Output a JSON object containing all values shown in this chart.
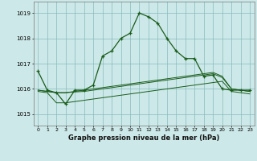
{
  "title": "Graphe pression niveau de la mer (hPa)",
  "background_color": "#cce8e8",
  "grid_color": "#88bbbb",
  "line_color": "#1a5c1a",
  "xlim": [
    -0.5,
    23.5
  ],
  "ylim": [
    1014.55,
    1019.45
  ],
  "yticks": [
    1015,
    1016,
    1017,
    1018,
    1019
  ],
  "xticks": [
    0,
    1,
    2,
    3,
    4,
    5,
    6,
    7,
    8,
    9,
    10,
    11,
    12,
    13,
    14,
    15,
    16,
    17,
    18,
    19,
    20,
    21,
    22,
    23
  ],
  "main_line": [
    1016.7,
    1015.95,
    1015.85,
    1015.4,
    1015.95,
    1015.95,
    1016.15,
    1017.3,
    1017.5,
    1018.0,
    1018.2,
    1019.0,
    1018.85,
    1018.6,
    1018.0,
    1017.5,
    1017.2,
    1017.2,
    1016.5,
    1016.55,
    1016.0,
    1015.95,
    1015.95,
    1015.95
  ],
  "line2": [
    1015.95,
    1015.9,
    1015.85,
    1015.85,
    1015.9,
    1015.95,
    1016.0,
    1016.05,
    1016.1,
    1016.15,
    1016.2,
    1016.25,
    1016.3,
    1016.35,
    1016.4,
    1016.45,
    1016.5,
    1016.55,
    1016.6,
    1016.65,
    1016.5,
    1016.0,
    1015.95,
    1015.9
  ],
  "line3": [
    1015.95,
    1015.9,
    1015.85,
    1015.85,
    1015.88,
    1015.9,
    1015.95,
    1016.0,
    1016.05,
    1016.1,
    1016.15,
    1016.2,
    1016.25,
    1016.3,
    1016.35,
    1016.4,
    1016.45,
    1016.5,
    1016.55,
    1016.6,
    1016.45,
    1016.0,
    1015.95,
    1015.9
  ],
  "line4": [
    1015.9,
    1015.85,
    1015.45,
    1015.45,
    1015.5,
    1015.55,
    1015.6,
    1015.65,
    1015.7,
    1015.75,
    1015.8,
    1015.85,
    1015.9,
    1015.95,
    1016.0,
    1016.05,
    1016.1,
    1016.15,
    1016.2,
    1016.25,
    1016.3,
    1015.9,
    1015.85,
    1015.8
  ]
}
